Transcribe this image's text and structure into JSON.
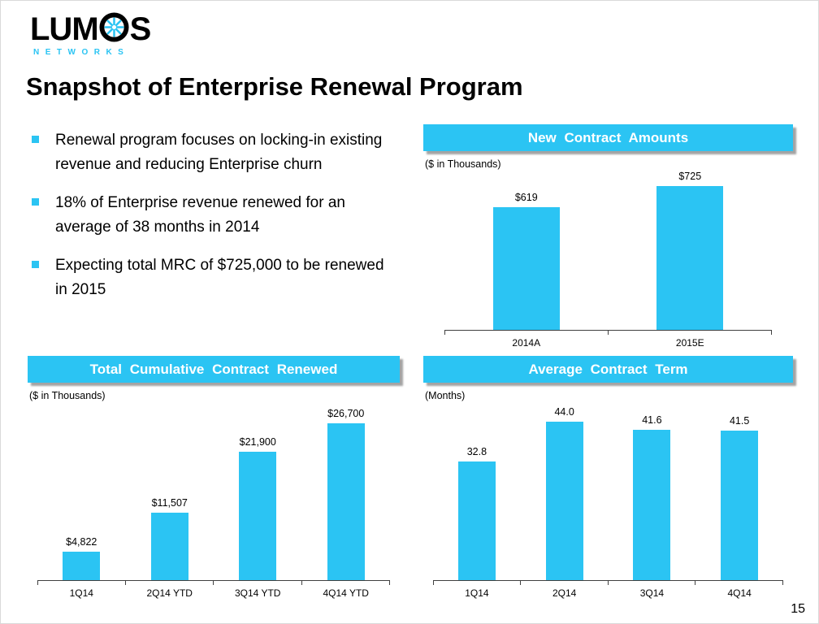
{
  "slide": {
    "title": "Snapshot of Enterprise Renewal Program",
    "page_number": "15"
  },
  "logo": {
    "text_before_star": "LUM",
    "text_after_star": "S",
    "subtext": "NETWORKS",
    "star_icon": "starburst-icon"
  },
  "colors": {
    "accent": "#2bc4f3",
    "bar": "#2bc4f3",
    "axis": "#404040",
    "banner_text": "#ffffff",
    "banner_shadow": "#a3a3a3"
  },
  "bullets": [
    "Renewal program focuses on locking-in existing revenue and reducing Enterprise churn",
    "18% of Enterprise revenue renewed for an average of 38 months in 2014",
    "Expecting total MRC of $725,000 to be renewed in 2015"
  ],
  "chart_data": [
    {
      "id": "new-contract-amounts",
      "type": "bar",
      "title": "New Contract Amounts",
      "unit_label": "($ in Thousands)",
      "categories": [
        "2014A",
        "2015E"
      ],
      "values": [
        619,
        725
      ],
      "value_labels": [
        "$619",
        "$725"
      ],
      "ylim": [
        0,
        780
      ],
      "grid": false,
      "legend": false
    },
    {
      "id": "total-cumulative-contract-renewed",
      "type": "bar",
      "title": "Total Cumulative Contract Renewed",
      "unit_label": "($ in Thousands)",
      "categories": [
        "1Q14",
        "2Q14 YTD",
        "3Q14 YTD",
        "4Q14 YTD"
      ],
      "values": [
        4822,
        11507,
        21900,
        26700
      ],
      "value_labels": [
        "$4,822",
        "$11,507",
        "$21,900",
        "$26,700"
      ],
      "ylim": [
        0,
        29500
      ],
      "grid": false,
      "legend": false
    },
    {
      "id": "average-contract-term",
      "type": "bar",
      "title": "Average Contract Term",
      "unit_label": "(Months)",
      "categories": [
        "1Q14",
        "2Q14",
        "3Q14",
        "4Q14"
      ],
      "values": [
        32.8,
        44.0,
        41.6,
        41.5
      ],
      "value_labels": [
        "32.8",
        "44.0",
        "41.6",
        "41.5"
      ],
      "ylim": [
        0,
        48
      ],
      "grid": false,
      "legend": false
    }
  ]
}
